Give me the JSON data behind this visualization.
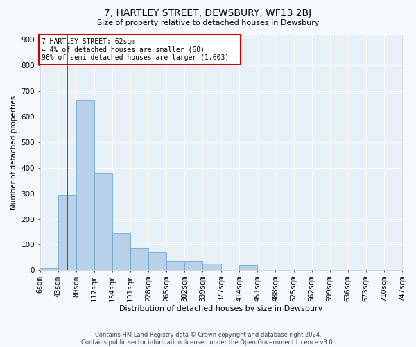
{
  "title": "7, HARTLEY STREET, DEWSBURY, WF13 2BJ",
  "subtitle": "Size of property relative to detached houses in Dewsbury",
  "xlabel": "Distribution of detached houses by size in Dewsbury",
  "ylabel": "Number of detached properties",
  "bar_color": "#b8d0e8",
  "bar_edge_color": "#6aaad4",
  "background_color": "#f5f8fc",
  "plot_bg_color": "#e8f0f8",
  "grid_color": "#ffffff",
  "annotation_box_color": "#ffffff",
  "annotation_box_edge_color": "#cc0000",
  "vline_color": "#cc0000",
  "vline_x": 62,
  "annotation_line1": "7 HARTLEY STREET: 62sqm",
  "annotation_line2": "← 4% of detached houses are smaller (60)",
  "annotation_line3": "96% of semi-detached houses are larger (1,603) →",
  "footer_line1": "Contains HM Land Registry data © Crown copyright and database right 2024.",
  "footer_line2": "Contains public sector information licensed under the Open Government Licence v3.0.",
  "bin_edges": [
    6,
    43,
    80,
    117,
    154,
    191,
    228,
    265,
    302,
    339,
    377,
    414,
    451,
    488,
    525,
    562,
    599,
    636,
    673,
    710,
    747
  ],
  "bar_heights": [
    10,
    295,
    665,
    380,
    145,
    85,
    70,
    35,
    35,
    25,
    0,
    20,
    0,
    0,
    0,
    0,
    0,
    0,
    0,
    0
  ],
  "ylim": [
    0,
    920
  ],
  "yticks": [
    0,
    100,
    200,
    300,
    400,
    500,
    600,
    700,
    800,
    900
  ]
}
